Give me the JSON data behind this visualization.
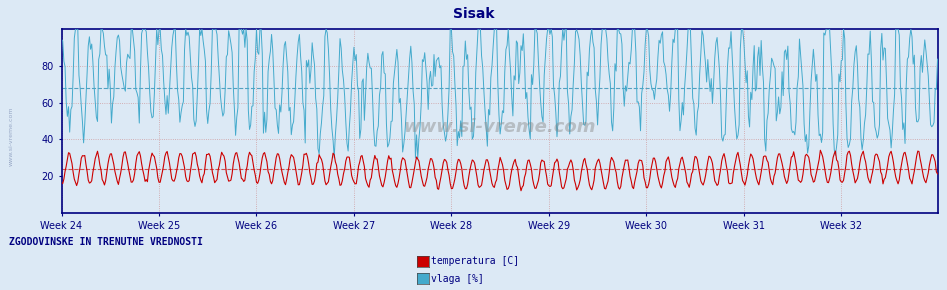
{
  "title": "Sisak",
  "title_color": "#000080",
  "title_fontsize": 10,
  "bg_color": "#dce9f5",
  "plot_bg_color": "#dce9f5",
  "x_weeks": [
    "Week 24",
    "Week 25",
    "Week 26",
    "Week 27",
    "Week 28",
    "Week 29",
    "Week 30",
    "Week 31",
    "Week 32"
  ],
  "n_points": 756,
  "temp_color": "#cc0000",
  "vlaga_color": "#44aacc",
  "temp_base": 23.0,
  "temp_amp": 8.0,
  "vlaga_base_mean": 68.0,
  "vlaga_amp_main": 25.0,
  "hgrid_red": [
    24,
    40,
    60,
    80
  ],
  "hgrid_blue": [
    68
  ],
  "vgrid_color": "#cc8888",
  "hgrid_red_color": "#cc8888",
  "hgrid_blue_color": "#4499bb",
  "ylabel_color": "#000080",
  "yticks": [
    20,
    40,
    60,
    80
  ],
  "xlabel_color": "#000080",
  "legend_label1": "temperatura [C]",
  "legend_label2": "vlaga [%]",
  "legend_color1": "#cc0000",
  "legend_color2": "#44aacc",
  "footer_text": "ZGODOVINSKE IN TRENUTNE VREDNOSTI",
  "footer_color": "#000080",
  "watermark": "www.si-vreme.com",
  "spine_color": "#000080",
  "ylim_min": 0,
  "ylim_max": 100
}
